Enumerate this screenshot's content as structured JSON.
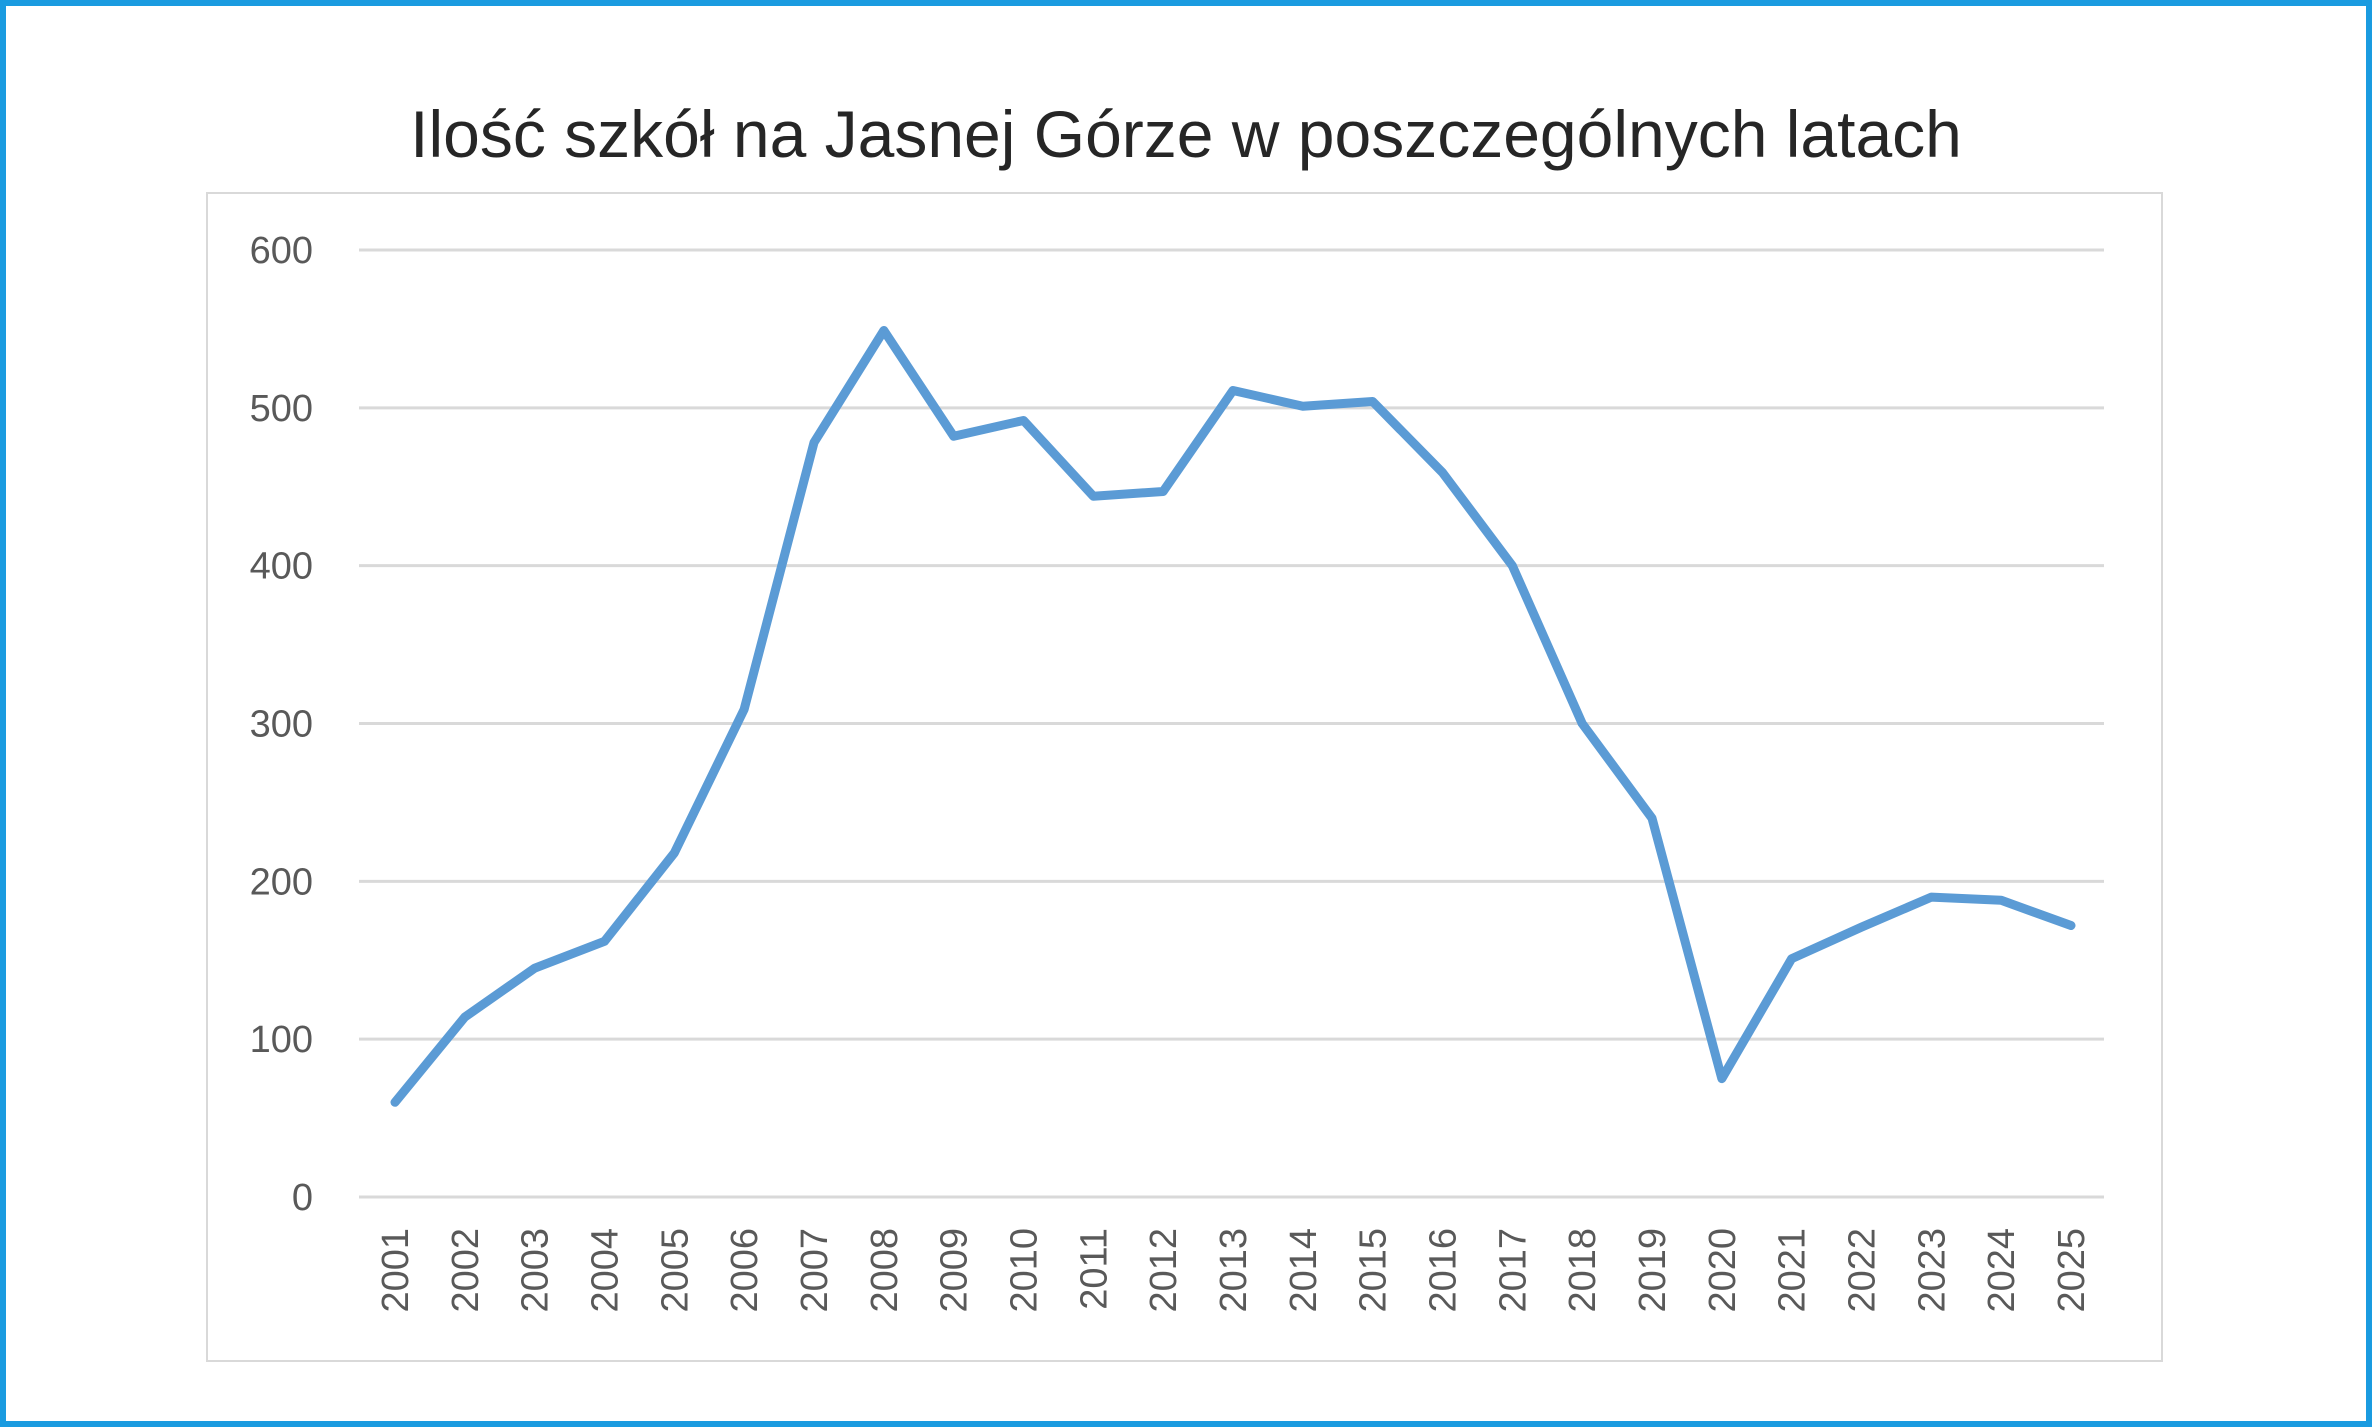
{
  "chart_data": {
    "type": "line",
    "title": "Ilość szkół na Jasnej Górze w poszczególnych latach",
    "xlabel": "",
    "ylabel": "",
    "ylim": [
      0,
      600
    ],
    "yticks": [
      "0",
      "100",
      "200",
      "300",
      "400",
      "500",
      "600"
    ],
    "grid": true,
    "legend": "none",
    "categories": [
      "2001",
      "2002",
      "2003",
      "2004",
      "2005",
      "2006",
      "2007",
      "2008",
      "2009",
      "2010",
      "2011",
      "2012",
      "2013",
      "2014",
      "2015",
      "2016",
      "2017",
      "2018",
      "2019",
      "2020",
      "2021",
      "2022",
      "2023",
      "2024",
      "2025"
    ],
    "series": [
      {
        "name": "Ilość szkół",
        "color": "#5b9bd5",
        "values": [
          60,
          114,
          145,
          162,
          218,
          309,
          478,
          549,
          482,
          492,
          444,
          447,
          511,
          501,
          504,
          459,
          400,
          300,
          240,
          75,
          151,
          171,
          190,
          188,
          172
        ]
      }
    ]
  }
}
